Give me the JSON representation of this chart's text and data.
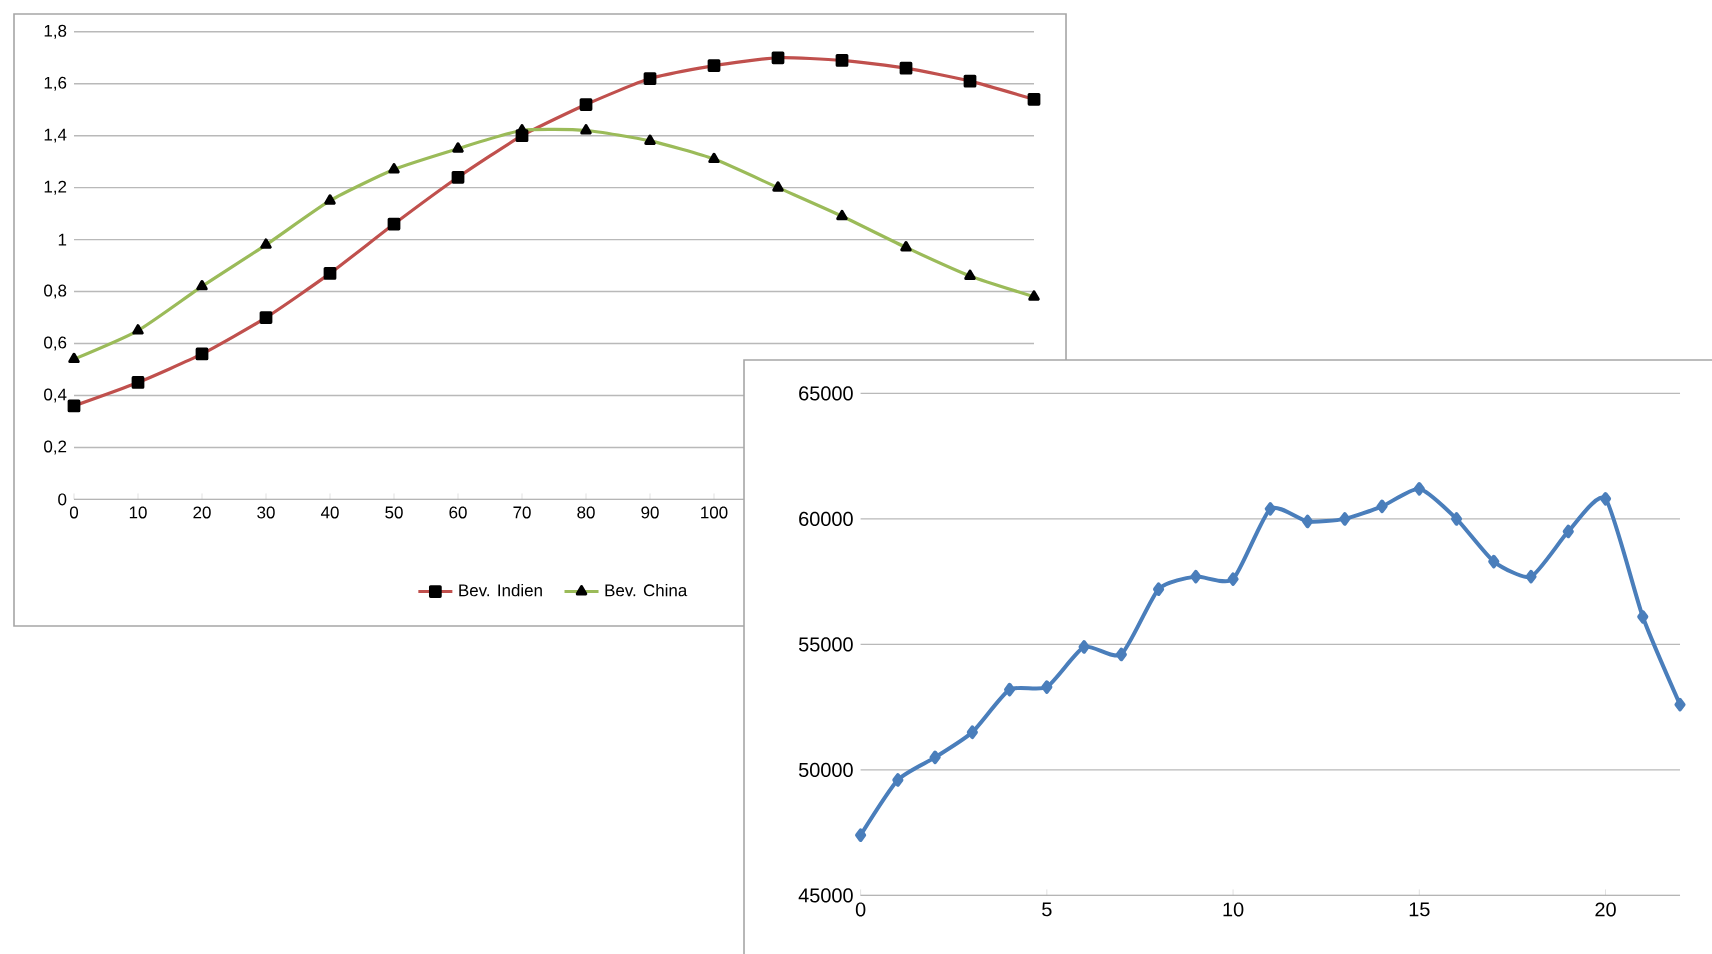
{
  "chart_data": [
    {
      "type": "line",
      "categories": [
        "0",
        "10",
        "20",
        "30",
        "40",
        "50",
        "60",
        "70",
        "80",
        "90",
        "100",
        null,
        null,
        null,
        null,
        null
      ],
      "series": [
        {
          "name": "Bev. Indien",
          "color": "#c0504d",
          "marker": "square",
          "values": [
            0.36,
            0.45,
            0.56,
            0.7,
            0.87,
            1.06,
            1.24,
            1.4,
            1.52,
            1.62,
            1.67,
            1.7,
            1.69,
            1.66,
            1.61,
            1.54
          ]
        },
        {
          "name": "Bev. China",
          "color": "#9bbb59",
          "marker": "triangle",
          "values": [
            0.54,
            0.65,
            0.82,
            0.98,
            1.15,
            1.27,
            1.35,
            1.42,
            1.42,
            1.38,
            1.31,
            1.2,
            1.09,
            0.97,
            0.86,
            0.78
          ]
        }
      ],
      "ylim": [
        0,
        1.8
      ],
      "yticks": [
        0,
        {
          "value": 0.2,
          "label": "0,2"
        },
        {
          "value": 0.4,
          "label": "0,4"
        },
        {
          "value": 0.6,
          "label": "0,6"
        },
        {
          "value": 0.8,
          "label": "0,8"
        },
        1,
        {
          "value": 1.2,
          "label": "1,2"
        },
        {
          "value": 1.4,
          "label": "1,4"
        },
        {
          "value": 1.6,
          "label": "1,6"
        },
        {
          "value": 1.8,
          "label": "1,8"
        }
      ],
      "grid": "y",
      "legend": "bottom"
    },
    {
      "type": "line",
      "x": [
        0,
        1,
        2,
        3,
        4,
        5,
        6,
        7,
        8,
        9,
        10,
        11,
        12,
        13,
        14,
        15,
        16,
        17,
        18,
        19,
        20,
        21,
        22
      ],
      "series": [
        {
          "color": "#4a7ebb",
          "marker": "diamond",
          "values": [
            47400,
            49600,
            50500,
            51500,
            53200,
            53300,
            54900,
            54600,
            57200,
            57700,
            57600,
            60400,
            59900,
            60000,
            60500,
            61200,
            60000,
            58300,
            57700,
            59500,
            60800,
            56100,
            52600
          ]
        }
      ],
      "xlim": [
        0,
        22
      ],
      "xticks": [
        0,
        5,
        10,
        15,
        20
      ],
      "ylim": [
        45000,
        65000
      ],
      "yticks": [
        45000,
        50000,
        55000,
        60000,
        65000
      ],
      "grid": "y"
    }
  ]
}
